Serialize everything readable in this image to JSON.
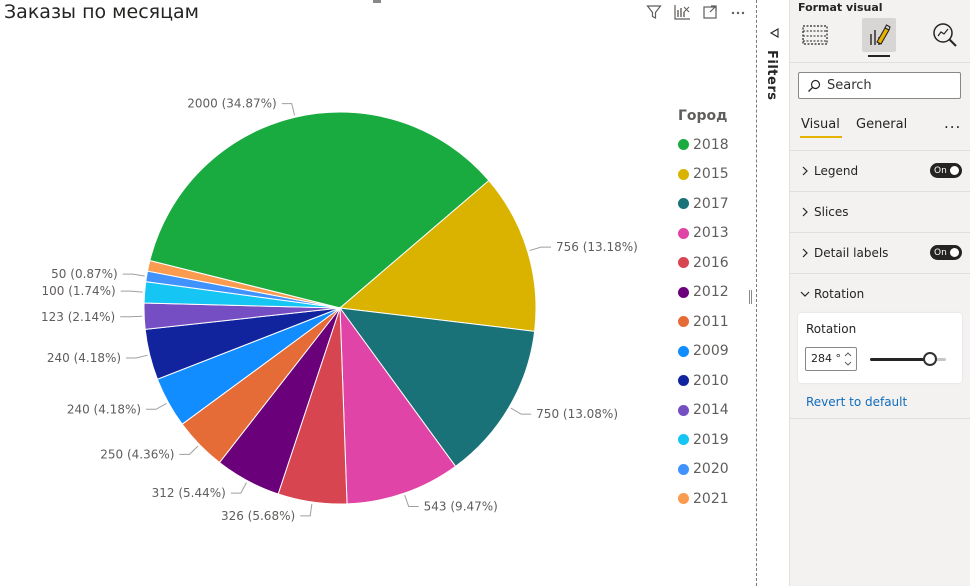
{
  "visual": {
    "title": "Заказы по месяцам",
    "header_icons": [
      "filter-icon",
      "focus-mode-icon",
      "expand-icon",
      "more-options-icon"
    ]
  },
  "chart_data": {
    "type": "pie",
    "title": "Заказы по месяцам",
    "legend_title": "Город",
    "legend_position": "right",
    "rotation_degrees": 284,
    "slices": [
      {
        "label": "2018",
        "value": 2000,
        "percent": "34.87%",
        "data_label": "2000 (34.87%)",
        "color": "#1aab40"
      },
      {
        "label": "2015",
        "value": 756,
        "percent": "13.18%",
        "data_label": "756 (13.18%)",
        "color": "#d9b300"
      },
      {
        "label": "2017",
        "value": 750,
        "percent": "13.08%",
        "data_label": "750 (13.08%)",
        "color": "#197278"
      },
      {
        "label": "2013",
        "value": 543,
        "percent": "9.47%",
        "data_label": "543 (9.47%)",
        "color": "#e044a7"
      },
      {
        "label": "2016",
        "value": 326,
        "percent": "5.68%",
        "data_label": "326 (5.68%)",
        "color": "#d64550"
      },
      {
        "label": "2012",
        "value": 312,
        "percent": "5.44%",
        "data_label": "312 (5.44%)",
        "color": "#6b007b"
      },
      {
        "label": "2011",
        "value": 250,
        "percent": "4.36%",
        "data_label": "250 (4.36%)",
        "color": "#e66c37"
      },
      {
        "label": "2009",
        "value": 240,
        "percent": "4.18%",
        "data_label": "240 (4.18%)",
        "color": "#118dff"
      },
      {
        "label": "2010",
        "value": 240,
        "percent": "4.18%",
        "data_label": "240 (4.18%)",
        "color": "#12239e"
      },
      {
        "label": "2014",
        "value": 123,
        "percent": "2.14%",
        "data_label": "123 (2.14%)",
        "color": "#744ec2"
      },
      {
        "label": "2019",
        "value": 100,
        "percent": "1.74%",
        "data_label": "100 (1.74%)",
        "color": "#15c6f4"
      },
      {
        "label": "2020",
        "value": 50,
        "percent": "0.87%",
        "data_label": "50 (0.87%)",
        "color": "#4092ff"
      },
      {
        "label": "2021",
        "value": 50,
        "percent": "0.87%",
        "data_label": "",
        "color": "#fa9b4f"
      }
    ]
  },
  "filters_pane": {
    "label": "Filters"
  },
  "format_pane": {
    "title": "Format visual",
    "search_placeholder": "Search",
    "tabs": {
      "visual": "Visual",
      "general": "General",
      "more": "..."
    },
    "cards": {
      "legend": {
        "label": "Legend",
        "toggle": "On"
      },
      "slices": {
        "label": "Slices"
      },
      "detail_labels": {
        "label": "Detail labels",
        "toggle": "On"
      },
      "rotation": {
        "label": "Rotation"
      }
    },
    "rotation": {
      "label": "Rotation",
      "value": "284",
      "unit": "°",
      "min": 0,
      "max": 360,
      "slider_value": 284
    },
    "revert_link": "Revert to default",
    "accent_color": "#e6b400"
  }
}
